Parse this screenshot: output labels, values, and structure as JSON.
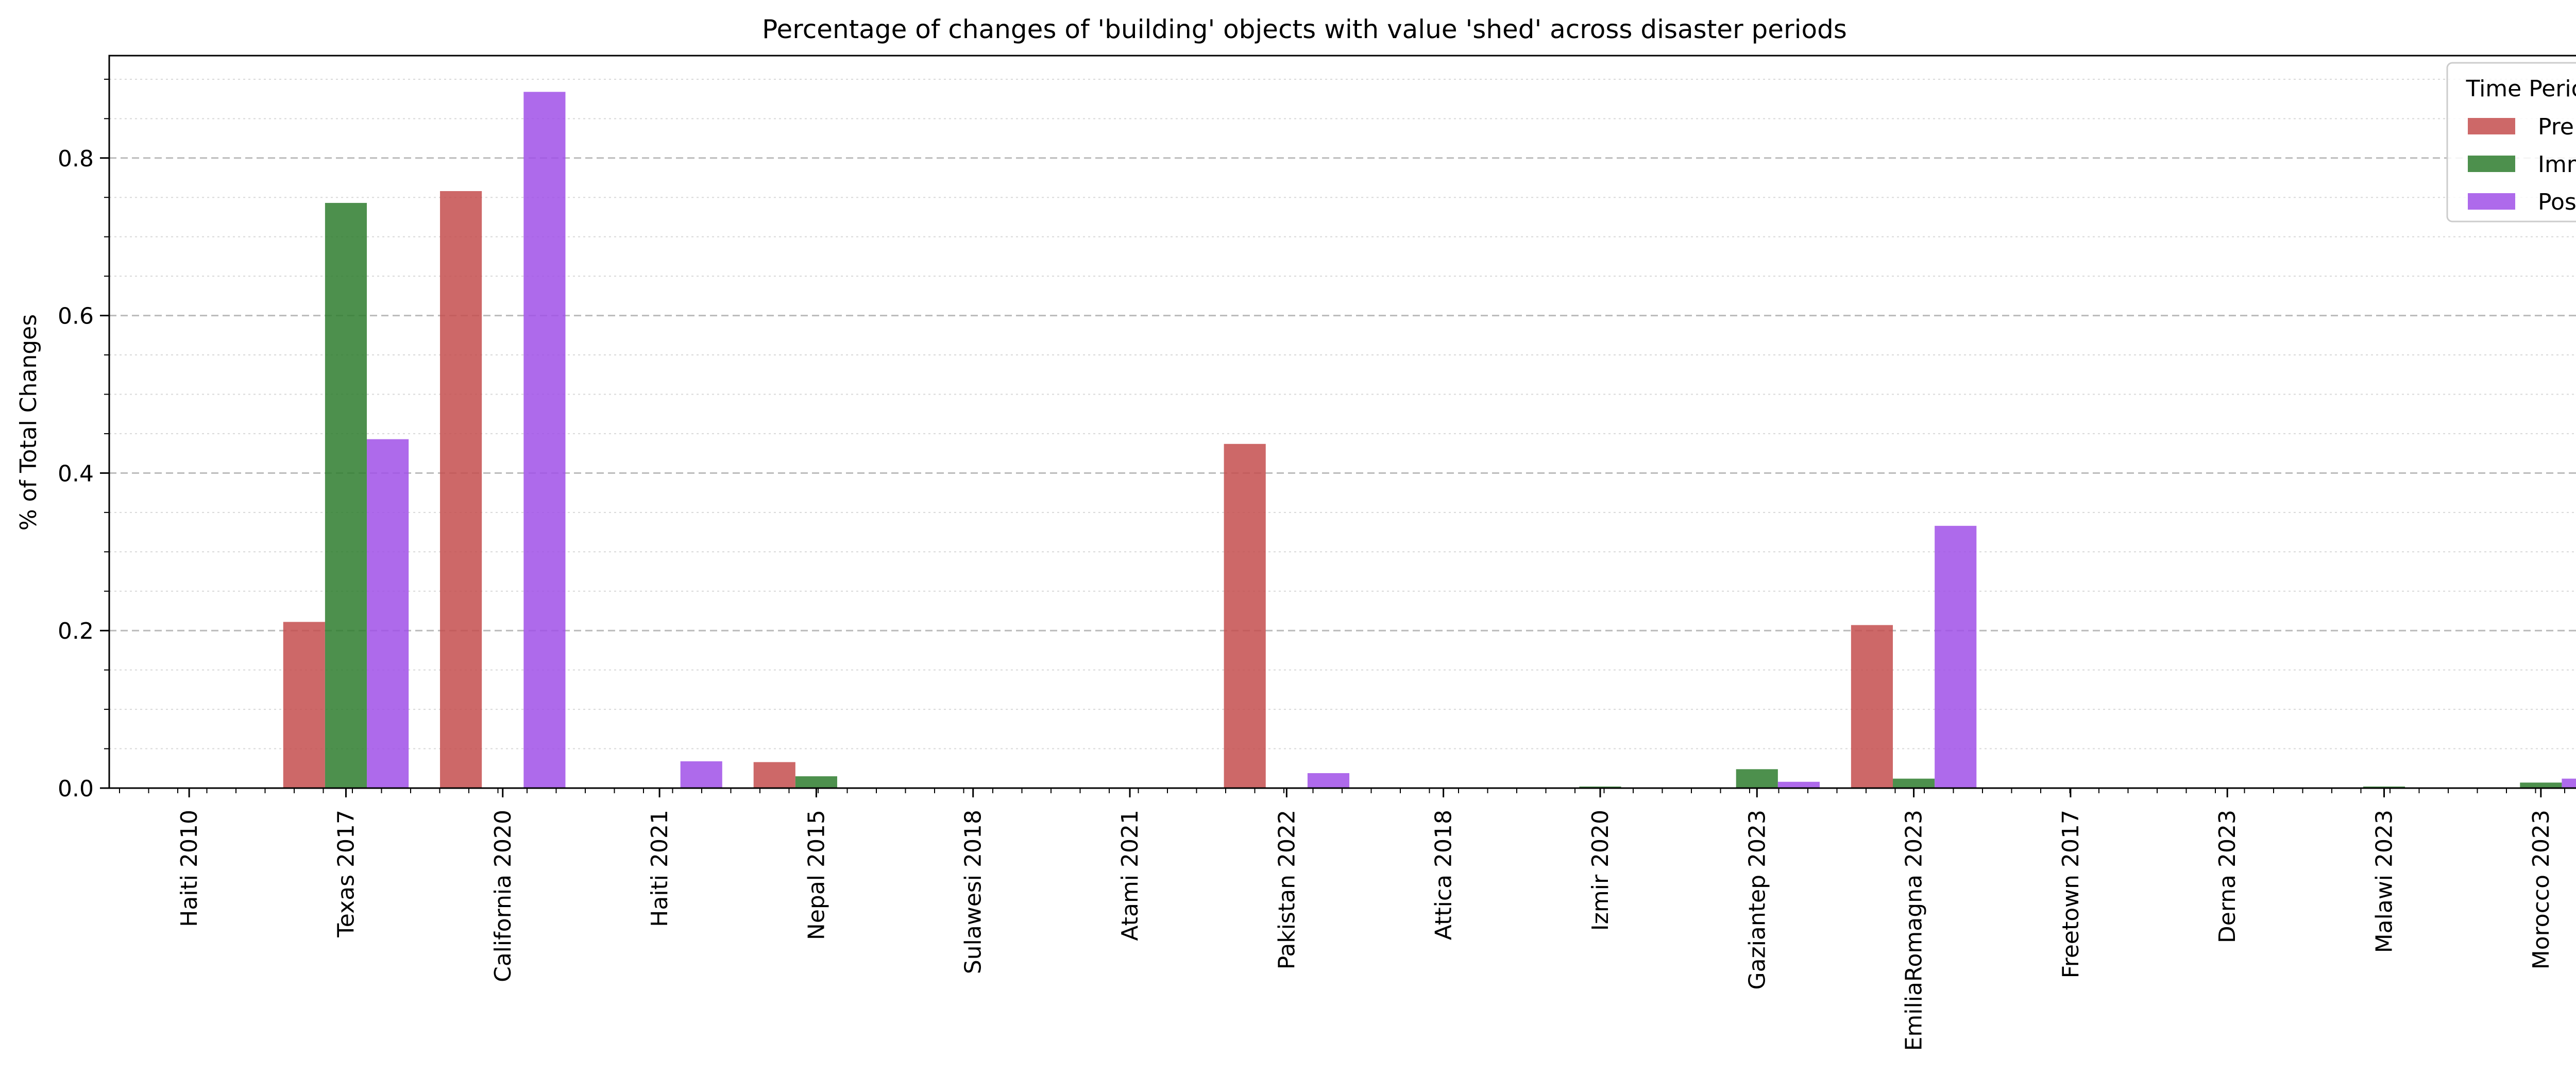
{
  "chart_data": {
    "type": "bar",
    "title": "Percentage of changes of 'building' objects with value 'shed' across disaster periods",
    "xlabel": "",
    "ylabel": "% of Total Changes",
    "ylim": [
      0,
      0.93
    ],
    "yticks": [
      0.0,
      0.2,
      0.4,
      0.6,
      0.8
    ],
    "ytick_labels": [
      "0.0",
      "0.2",
      "0.4",
      "0.6",
      "0.8"
    ],
    "grid": "y-major-dashed-and-minor-dotted",
    "legend": {
      "title": "Time Period",
      "placement": "top-right"
    },
    "categories": [
      "Haiti 2010",
      "Texas 2017",
      "California 2020",
      "Haiti 2021",
      "Nepal 2015",
      "Sulawesi 2018",
      "Atami 2021",
      "Pakistan 2022",
      "Attica 2018",
      "Izmir 2020",
      "Gaziantep 2023",
      "EmiliaRomagna 2023",
      "Freetown 2017",
      "Derna 2023",
      "Malawi 2023",
      "Morocco 2023"
    ],
    "series": [
      {
        "name": "Pre",
        "color": "#c44e4e",
        "values": [
          0,
          0.211,
          0.758,
          0,
          0.033,
          0,
          0,
          0.437,
          0,
          0,
          0,
          0.207,
          0,
          0,
          0,
          0
        ]
      },
      {
        "name": "Imm",
        "color": "#2e7d2e",
        "values": [
          0,
          0.743,
          0,
          0,
          0.015,
          0,
          0,
          0,
          0,
          0.002,
          0.024,
          0.012,
          0,
          0,
          0.002,
          0.007
        ]
      },
      {
        "name": "Post",
        "color": "#a050e8",
        "values": [
          0,
          0.443,
          0.884,
          0.034,
          0,
          0,
          0,
          0.019,
          0,
          0,
          0.008,
          0.333,
          0,
          0,
          0,
          0.012
        ]
      }
    ]
  }
}
